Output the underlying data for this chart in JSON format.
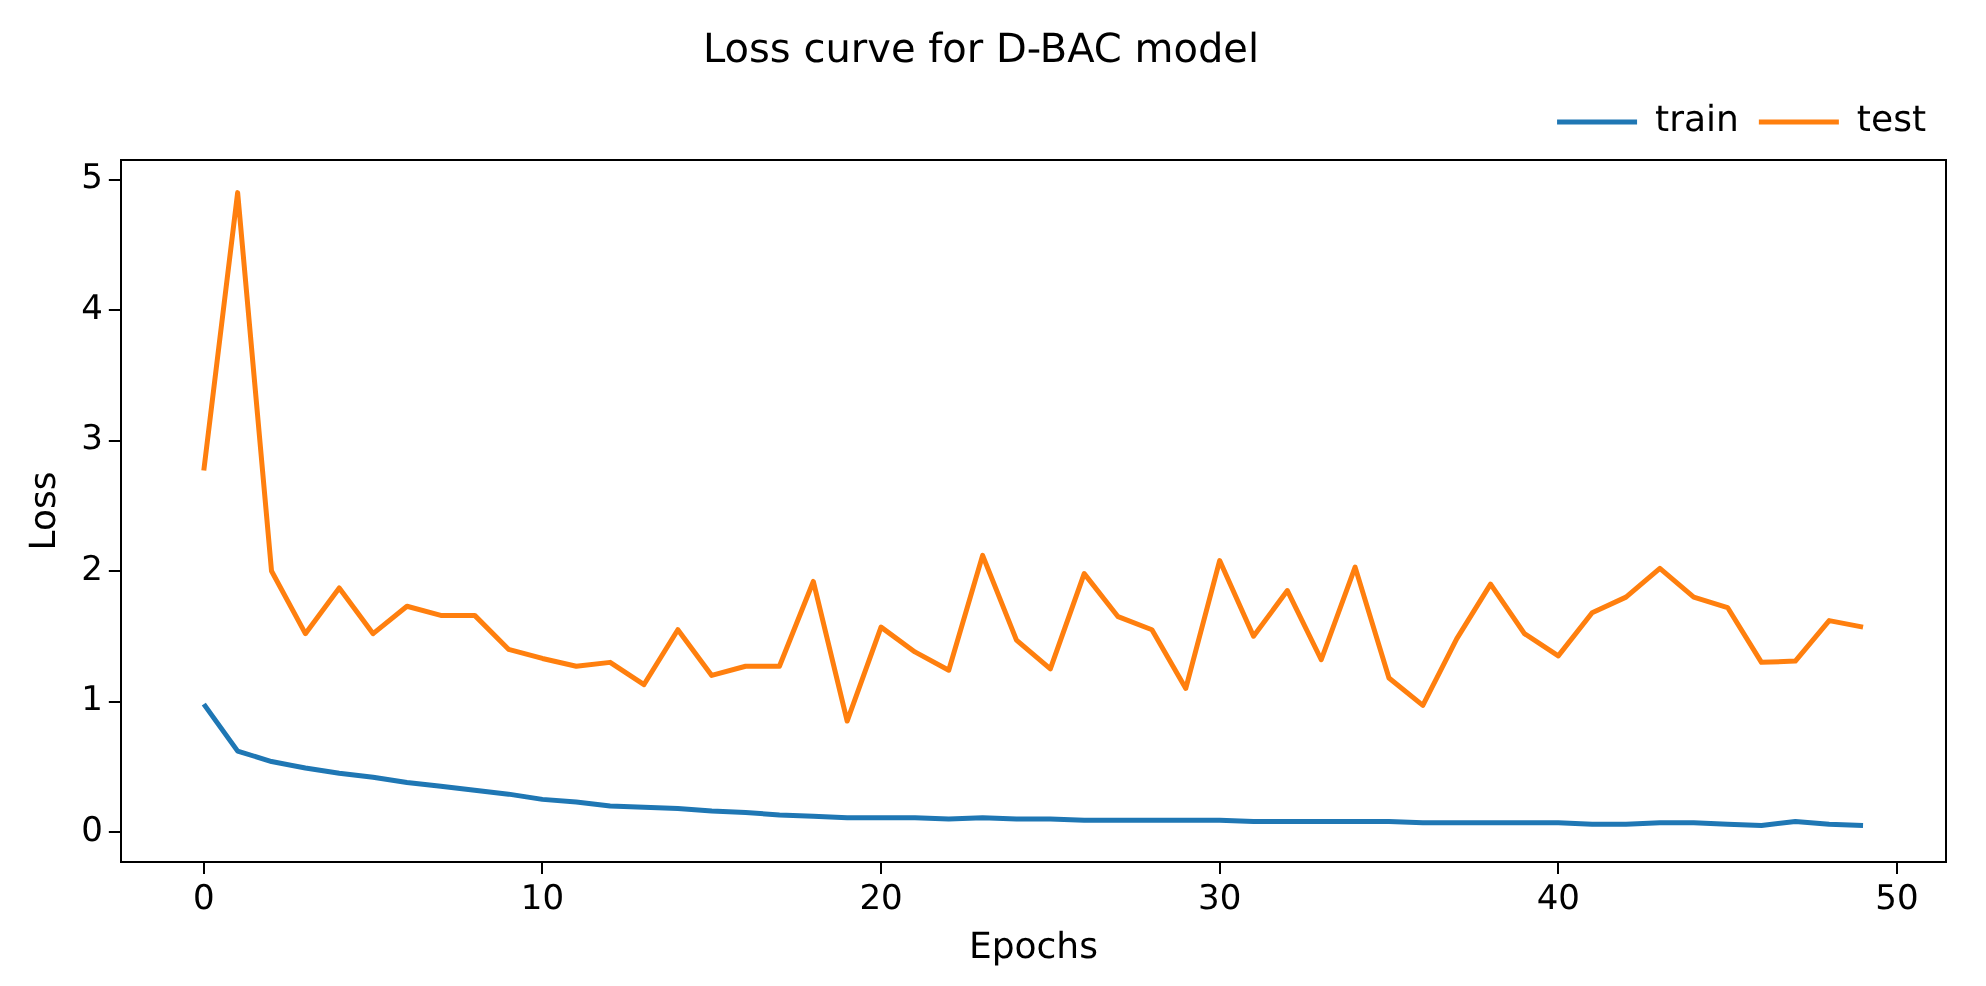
{
  "chart_data": {
    "type": "line",
    "title": "Loss curve for D-BAC model",
    "xlabel": "Epochs",
    "ylabel": "Loss",
    "x": [
      0,
      1,
      2,
      3,
      4,
      5,
      6,
      7,
      8,
      9,
      10,
      11,
      12,
      13,
      14,
      15,
      16,
      17,
      18,
      19,
      20,
      21,
      22,
      23,
      24,
      25,
      26,
      27,
      28,
      29,
      30,
      31,
      32,
      33,
      34,
      35,
      36,
      37,
      38,
      39,
      40,
      41,
      42,
      43,
      44,
      45,
      46,
      47,
      48,
      49
    ],
    "series": [
      {
        "name": "train",
        "color": "#1f77b4",
        "values": [
          0.98,
          0.62,
          0.54,
          0.49,
          0.45,
          0.42,
          0.38,
          0.35,
          0.32,
          0.29,
          0.25,
          0.23,
          0.2,
          0.19,
          0.18,
          0.16,
          0.15,
          0.13,
          0.12,
          0.11,
          0.11,
          0.11,
          0.1,
          0.11,
          0.1,
          0.1,
          0.09,
          0.09,
          0.09,
          0.09,
          0.09,
          0.08,
          0.08,
          0.08,
          0.08,
          0.08,
          0.07,
          0.07,
          0.07,
          0.07,
          0.07,
          0.06,
          0.06,
          0.07,
          0.07,
          0.06,
          0.05,
          0.08,
          0.06,
          0.05
        ]
      },
      {
        "name": "test",
        "color": "#ff7f0e",
        "values": [
          2.77,
          4.9,
          2.0,
          1.52,
          1.87,
          1.52,
          1.73,
          1.66,
          1.66,
          1.4,
          1.33,
          1.27,
          1.3,
          1.13,
          1.55,
          1.2,
          1.27,
          1.27,
          1.92,
          0.85,
          1.57,
          1.38,
          1.24,
          2.12,
          1.47,
          1.25,
          1.98,
          1.65,
          1.55,
          1.1,
          2.08,
          1.5,
          1.85,
          1.32,
          2.03,
          1.18,
          0.97,
          1.48,
          1.9,
          1.52,
          1.35,
          1.68,
          1.8,
          2.02,
          1.8,
          1.72,
          1.3,
          1.31,
          1.62,
          1.57
        ]
      }
    ],
    "xlim": [
      -2.45,
      51.45
    ],
    "xticks": [
      0,
      10,
      20,
      30,
      40,
      50
    ],
    "ylim": [
      -0.23,
      5.15
    ],
    "yticks": [
      0,
      1,
      2,
      3,
      4,
      5
    ],
    "grid": false,
    "legend": "top right",
    "marker": "none",
    "line_style": "solid"
  }
}
